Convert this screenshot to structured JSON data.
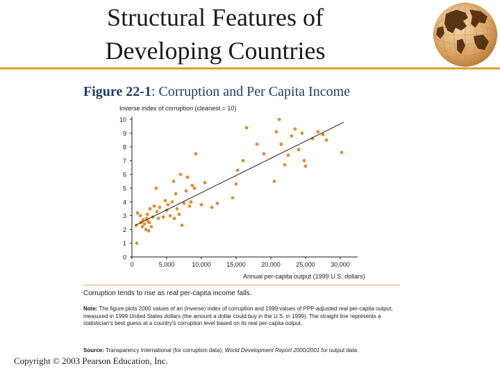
{
  "slide": {
    "title_line1": "Structural Features of",
    "title_line2": "Developing Countries",
    "figure_label": "Figure 22-1",
    "figure_title": ": Corruption and Per Capita Income",
    "caption": "Corruption tends to rise as real per-capita income falls.",
    "note_label": "Note:",
    "note_text": "The figure plots 2000 values of an (inverse) index of corruption and 1999 values of PPP-adjusted real per-capita output, measured in 1999 United States dollars (the amount a dollar could buy in the U.S. in 1999). The straight line represents a statistician's best guess at a country's corruption level based on its real per-capita output.",
    "source_label": "Source:",
    "source_pre": "Transparency International (for corruption data);",
    "source_italic": "World Development Report 2000/2001",
    "source_post": "for output data.",
    "copyright": "Copyright © 2003 Pearson Education, Inc.",
    "logo_icon": "globe-icon",
    "accent_color": "#d9a22b"
  },
  "chart_data": {
    "type": "scatter",
    "ylabel": "Inverse index of corruption (cleanest = 10)",
    "xlabel": "Annual per-capita output (1999 U.S. dollars)",
    "xlim": [
      0,
      32500
    ],
    "ylim": [
      0,
      10
    ],
    "x_ticks": [
      0,
      5000,
      10000,
      15000,
      20000,
      25000,
      30000
    ],
    "x_tick_labels": [
      "0",
      "5,000",
      "10,000",
      "15,000",
      "20,000",
      "25,000",
      "30,000"
    ],
    "y_ticks": [
      0,
      1,
      2,
      3,
      4,
      5,
      6,
      7,
      8,
      9,
      10
    ],
    "y_tick_labels": [
      "0",
      "1",
      "2",
      "3",
      "4",
      "5",
      "6",
      "7",
      "8",
      "9",
      "10"
    ],
    "marker_color": "#e8892a",
    "trend_line": {
      "x": [
        500,
        30500
      ],
      "y": [
        2.3,
        9.8
      ]
    },
    "points": [
      {
        "x": 700,
        "y": 1.0
      },
      {
        "x": 600,
        "y": 2.3
      },
      {
        "x": 800,
        "y": 3.2
      },
      {
        "x": 1200,
        "y": 3.0
      },
      {
        "x": 1300,
        "y": 2.5
      },
      {
        "x": 1500,
        "y": 2.2
      },
      {
        "x": 1600,
        "y": 2.7
      },
      {
        "x": 1800,
        "y": 2.4
      },
      {
        "x": 2000,
        "y": 2.0
      },
      {
        "x": 2100,
        "y": 2.8
      },
      {
        "x": 2200,
        "y": 3.1
      },
      {
        "x": 2300,
        "y": 2.6
      },
      {
        "x": 2400,
        "y": 1.9
      },
      {
        "x": 2500,
        "y": 2.5
      },
      {
        "x": 2600,
        "y": 3.5
      },
      {
        "x": 2800,
        "y": 2.2
      },
      {
        "x": 3000,
        "y": 2.9
      },
      {
        "x": 3200,
        "y": 3.7
      },
      {
        "x": 3500,
        "y": 5.0
      },
      {
        "x": 3600,
        "y": 3.3
      },
      {
        "x": 3800,
        "y": 2.8
      },
      {
        "x": 4000,
        "y": 3.6
      },
      {
        "x": 4500,
        "y": 2.9
      },
      {
        "x": 4800,
        "y": 4.1
      },
      {
        "x": 5000,
        "y": 3.4
      },
      {
        "x": 5200,
        "y": 3.8
      },
      {
        "x": 5500,
        "y": 3.0
      },
      {
        "x": 5800,
        "y": 4.0
      },
      {
        "x": 6000,
        "y": 5.5
      },
      {
        "x": 6100,
        "y": 2.8
      },
      {
        "x": 6300,
        "y": 4.6
      },
      {
        "x": 6500,
        "y": 3.5
      },
      {
        "x": 6800,
        "y": 3.1
      },
      {
        "x": 7000,
        "y": 6.0
      },
      {
        "x": 7200,
        "y": 2.3
      },
      {
        "x": 7500,
        "y": 3.9
      },
      {
        "x": 7800,
        "y": 4.8
      },
      {
        "x": 8000,
        "y": 5.8
      },
      {
        "x": 8300,
        "y": 3.7
      },
      {
        "x": 8500,
        "y": 4.0
      },
      {
        "x": 8700,
        "y": 5.2
      },
      {
        "x": 9000,
        "y": 5.0
      },
      {
        "x": 9200,
        "y": 7.5
      },
      {
        "x": 10000,
        "y": 3.8
      },
      {
        "x": 10500,
        "y": 5.4
      },
      {
        "x": 11500,
        "y": 3.6
      },
      {
        "x": 12300,
        "y": 3.9
      },
      {
        "x": 14500,
        "y": 4.3
      },
      {
        "x": 15000,
        "y": 5.3
      },
      {
        "x": 15200,
        "y": 6.3
      },
      {
        "x": 16000,
        "y": 7.0
      },
      {
        "x": 16500,
        "y": 9.4
      },
      {
        "x": 18000,
        "y": 8.2
      },
      {
        "x": 19000,
        "y": 7.5
      },
      {
        "x": 20500,
        "y": 5.5
      },
      {
        "x": 20800,
        "y": 9.1
      },
      {
        "x": 21200,
        "y": 10.0
      },
      {
        "x": 21500,
        "y": 8.2
      },
      {
        "x": 22000,
        "y": 6.7
      },
      {
        "x": 22500,
        "y": 7.4
      },
      {
        "x": 23000,
        "y": 8.8
      },
      {
        "x": 23500,
        "y": 9.3
      },
      {
        "x": 24000,
        "y": 7.8
      },
      {
        "x": 24500,
        "y": 9.0
      },
      {
        "x": 24800,
        "y": 7.0
      },
      {
        "x": 25000,
        "y": 6.6
      },
      {
        "x": 26000,
        "y": 8.6
      },
      {
        "x": 26800,
        "y": 9.1
      },
      {
        "x": 27500,
        "y": 8.9
      },
      {
        "x": 28000,
        "y": 8.5
      },
      {
        "x": 30200,
        "y": 7.6
      }
    ]
  }
}
